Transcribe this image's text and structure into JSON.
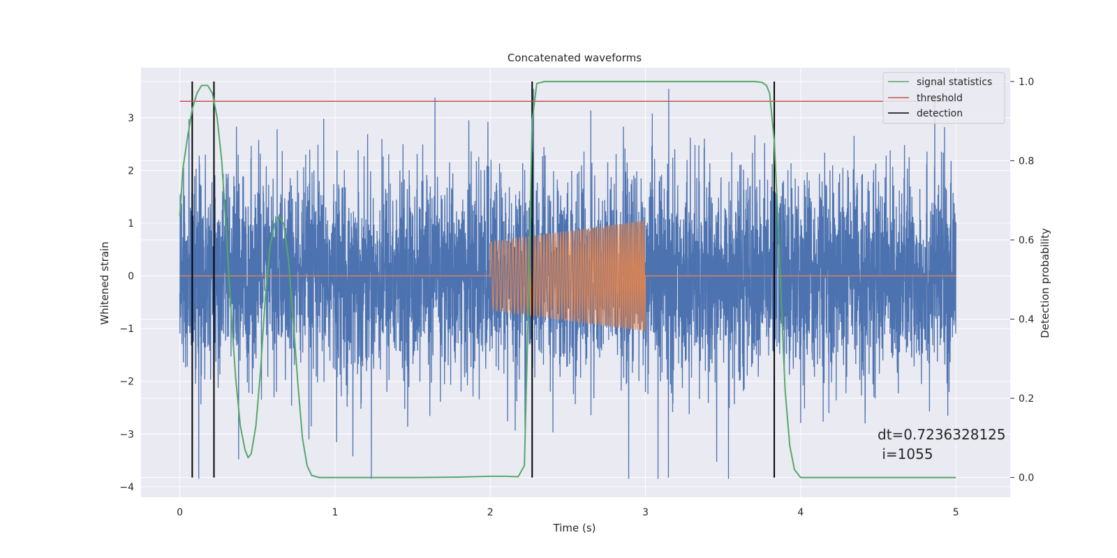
{
  "chart_data": {
    "type": "line",
    "title": "Concatenated waveforms",
    "xlabel": "Time (s)",
    "ylabel": "Whitened strain",
    "y2label": "Detection probability",
    "xlim": [
      -0.25,
      5.35
    ],
    "ylim": [
      -4.2,
      3.95
    ],
    "y2lim": [
      -0.05,
      1.035
    ],
    "xticks": [
      0,
      1,
      2,
      3,
      4,
      5
    ],
    "yticks": [
      -4,
      -3,
      -2,
      -1,
      0,
      1,
      2,
      3
    ],
    "y2ticks": [
      0.0,
      0.2,
      0.4,
      0.6,
      0.8,
      1.0
    ],
    "y2tick_labels": [
      "0.0",
      "0.2",
      "0.4",
      "0.6",
      "0.8",
      "1.0"
    ],
    "grid": true,
    "legend_position": "top-right",
    "legend": [
      {
        "label": "signal statistics",
        "color": "#55a868"
      },
      {
        "label": "threshold",
        "color": "#c44e52"
      },
      {
        "label": "detection",
        "color": "#000000"
      }
    ],
    "annotation": {
      "line1": "dt=0.7236328125",
      "line2": " i=1055",
      "x": 4.5,
      "y": -3.0
    },
    "series": [
      {
        "name": "",
        "color": "#4c72b0",
        "kind": "whitened strain noise",
        "x_range": [
          0,
          5
        ],
        "typical_amplitude": 1.3,
        "peak_max": 3.55,
        "peak_min": -3.85
      },
      {
        "name": "",
        "color": "#dd8452",
        "kind": "injected chirp",
        "x_range": [
          2,
          3
        ],
        "amp_start": 0.65,
        "amp_end": 1.05,
        "value_outside": 0
      },
      {
        "name": "signal statistics",
        "color": "#55a868",
        "axis": "right",
        "x": [
          0,
          0.02,
          0.05,
          0.08,
          0.11,
          0.14,
          0.18,
          0.21,
          0.24,
          0.27,
          0.3,
          0.33,
          0.36,
          0.39,
          0.42,
          0.44,
          0.46,
          0.49,
          0.52,
          0.55,
          0.58,
          0.61,
          0.64,
          0.67,
          0.7,
          0.73,
          0.76,
          0.79,
          0.82,
          0.85,
          0.9,
          1.2,
          1.5,
          1.8,
          2.0,
          2.1,
          2.18,
          2.22,
          2.25,
          2.27,
          2.3,
          2.35,
          2.5,
          3.0,
          3.5,
          3.7,
          3.75,
          3.78,
          3.8,
          3.83,
          3.86,
          3.88,
          3.9,
          3.93,
          3.96,
          4.0,
          4.2,
          4.6,
          5.0
        ],
        "y": [
          0.66,
          0.78,
          0.86,
          0.93,
          0.97,
          0.99,
          0.99,
          0.97,
          0.91,
          0.8,
          0.62,
          0.42,
          0.25,
          0.13,
          0.07,
          0.05,
          0.06,
          0.13,
          0.27,
          0.45,
          0.58,
          0.64,
          0.66,
          0.64,
          0.55,
          0.4,
          0.24,
          0.1,
          0.03,
          0.005,
          0.0,
          0.0,
          0.0,
          0.001,
          0.003,
          0.003,
          0.002,
          0.03,
          0.5,
          0.9,
          0.995,
          1.0,
          1.0,
          1.0,
          1.0,
          1.0,
          0.998,
          0.99,
          0.97,
          0.85,
          0.6,
          0.4,
          0.22,
          0.08,
          0.02,
          0.0,
          0.0,
          0.0,
          0.0
        ]
      },
      {
        "name": "threshold",
        "color": "#c44e52",
        "axis": "right",
        "x": [
          0,
          5
        ],
        "y": [
          0.95,
          0.95
        ]
      },
      {
        "name": "detection",
        "color": "#000000",
        "axis": "right",
        "x_positions": [
          0.08,
          0.22,
          2.27,
          3.83
        ],
        "y_range": [
          0,
          1
        ]
      }
    ]
  }
}
